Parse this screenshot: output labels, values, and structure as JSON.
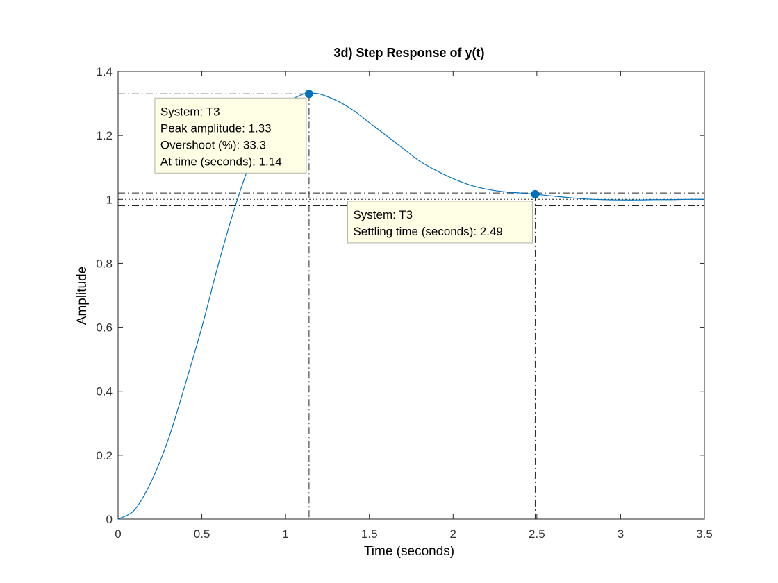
{
  "chart_data": {
    "type": "line",
    "title": "3d) Step Response of y(t)",
    "xlabel": "Time (seconds)",
    "ylabel": "Amplitude",
    "xlim": [
      0,
      3.5
    ],
    "ylim": [
      0,
      1.4
    ],
    "xticks": [
      0,
      0.5,
      1,
      1.5,
      2,
      2.5,
      3,
      3.5
    ],
    "xtick_labels": [
      "0",
      "0.5",
      "1",
      "1.5",
      "2",
      "2.5",
      "3",
      "3.5"
    ],
    "yticks": [
      0,
      0.2,
      0.4,
      0.6,
      0.8,
      1,
      1.2,
      1.4
    ],
    "ytick_labels": [
      "0",
      "0.2",
      "0.4",
      "0.6",
      "0.8",
      "1",
      "1.2",
      "1.4"
    ],
    "grid": false,
    "series": [
      {
        "color": "#0072bd",
        "x": [
          0,
          0.1,
          0.2,
          0.3,
          0.4,
          0.5,
          0.6,
          0.7,
          0.8,
          0.9,
          1.0,
          1.1,
          1.14,
          1.2,
          1.3,
          1.4,
          1.5,
          1.6,
          1.7,
          1.8,
          1.9,
          2.0,
          2.1,
          2.2,
          2.3,
          2.4,
          2.49,
          2.6,
          2.7,
          2.8,
          2.9,
          3.0,
          3.1,
          3.2,
          3.3,
          3.4,
          3.5
        ],
        "y": [
          0,
          0.03,
          0.12,
          0.25,
          0.42,
          0.6,
          0.8,
          0.98,
          1.13,
          1.24,
          1.3,
          1.328,
          1.331,
          1.33,
          1.31,
          1.28,
          1.24,
          1.2,
          1.16,
          1.12,
          1.09,
          1.065,
          1.045,
          1.032,
          1.024,
          1.02,
          1.016,
          1.01,
          1.005,
          1.001,
          0.999,
          0.998,
          0.998,
          0.999,
          0.999,
          1.0,
          1.0
        ]
      }
    ],
    "reference_lines": {
      "final_value": 1.0,
      "settling_band": [
        0.98,
        1.02
      ],
      "peak_value": 1.33,
      "peak_time": 1.14,
      "settling_time": 2.49
    },
    "markers": [
      {
        "x": 1.14,
        "y": 1.33
      },
      {
        "x": 2.49,
        "y": 1.016
      }
    ],
    "datatips": [
      {
        "anchor_x": 1.14,
        "anchor_y": 1.33,
        "lines": [
          "System: T3",
          "Peak amplitude: 1.33",
          "Overshoot (%): 33.3",
          "At time (seconds): 1.14"
        ]
      },
      {
        "anchor_x": 2.49,
        "anchor_y": 1.016,
        "lines": [
          "System: T3",
          "Settling time (seconds): 2.49"
        ]
      }
    ],
    "colors": {
      "line": "#0072bd",
      "marker": "#0072bd",
      "axes": "#262626",
      "reference": "#262626",
      "tip_fill": "#ffffe6",
      "tip_border": "#b3b3a3"
    }
  }
}
